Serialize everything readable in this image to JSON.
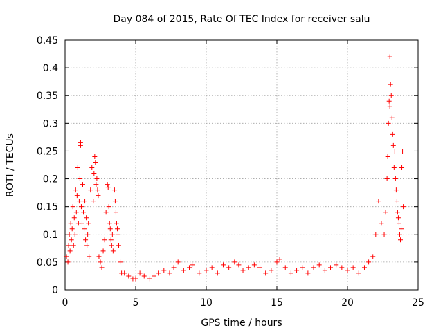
{
  "chart_data": {
    "type": "scatter",
    "title": "Day 084 of 2015, Rate Of TEC Index for receiver salu",
    "xlabel": "GPS time / hours",
    "ylabel": "ROTI / TECUs",
    "xlim": [
      0,
      25
    ],
    "ylim": [
      0,
      0.45
    ],
    "xticks": [
      0,
      5,
      10,
      15,
      20,
      25
    ],
    "xtick_labels": [
      "0",
      "5",
      "10",
      "15",
      "20",
      "25"
    ],
    "yticks": [
      0,
      0.05,
      0.1,
      0.15,
      0.2,
      0.25,
      0.3,
      0.35,
      0.4,
      0.45
    ],
    "ytick_labels": [
      "0",
      "0.05",
      "0.1",
      "0.15",
      "0.2",
      "0.25",
      "0.3",
      "0.35",
      "0.4",
      "0.45"
    ],
    "grid": true,
    "marker": "+",
    "color": "#ff0000",
    "series": [
      {
        "name": "ROTI",
        "x": [
          0.1,
          0.2,
          0.25,
          0.3,
          0.35,
          0.4,
          0.45,
          0.5,
          0.55,
          0.6,
          0.65,
          0.7,
          0.75,
          0.8,
          0.85,
          0.9,
          0.95,
          1.0,
          1.05,
          1.1,
          1.1,
          1.15,
          1.2,
          1.25,
          1.3,
          1.35,
          1.4,
          1.45,
          1.5,
          1.55,
          1.6,
          1.65,
          1.7,
          1.8,
          1.9,
          2.0,
          2.05,
          2.1,
          2.15,
          2.2,
          2.25,
          2.3,
          2.35,
          2.4,
          2.5,
          2.6,
          2.7,
          2.8,
          2.9,
          3.0,
          3.05,
          3.1,
          3.15,
          3.2,
          3.25,
          3.3,
          3.35,
          3.4,
          3.5,
          3.55,
          3.6,
          3.65,
          3.7,
          3.75,
          3.8,
          3.9,
          4.0,
          4.2,
          4.5,
          4.8,
          5.0,
          5.3,
          5.6,
          6.0,
          6.3,
          6.6,
          7.0,
          7.4,
          7.7,
          8.0,
          8.4,
          8.8,
          9.0,
          9.5,
          10.0,
          10.4,
          10.8,
          11.2,
          11.6,
          12.0,
          12.3,
          12.6,
          13.0,
          13.4,
          13.8,
          14.2,
          14.6,
          15.0,
          15.2,
          15.6,
          16.0,
          16.4,
          16.8,
          17.2,
          17.6,
          18.0,
          18.4,
          18.8,
          19.2,
          19.6,
          20.0,
          20.4,
          20.8,
          21.2,
          21.5,
          21.8,
          22.0,
          22.2,
          22.4,
          22.6,
          22.7,
          22.8,
          22.85,
          22.9,
          22.95,
          23.0,
          23.0,
          23.05,
          23.1,
          23.15,
          23.2,
          23.25,
          23.3,
          23.35,
          23.4,
          23.45,
          23.5,
          23.55,
          23.6,
          23.65,
          23.7,
          23.75,
          23.8,
          23.85,
          23.9,
          23.95
        ],
        "y": [
          0.06,
          0.05,
          0.08,
          0.1,
          0.07,
          0.12,
          0.09,
          0.11,
          0.15,
          0.08,
          0.13,
          0.1,
          0.18,
          0.14,
          0.17,
          0.22,
          0.12,
          0.16,
          0.2,
          0.265,
          0.26,
          0.15,
          0.12,
          0.19,
          0.14,
          0.11,
          0.16,
          0.09,
          0.13,
          0.08,
          0.1,
          0.12,
          0.06,
          0.18,
          0.22,
          0.16,
          0.21,
          0.24,
          0.23,
          0.19,
          0.2,
          0.18,
          0.17,
          0.06,
          0.05,
          0.04,
          0.07,
          0.09,
          0.14,
          0.19,
          0.185,
          0.15,
          0.12,
          0.11,
          0.09,
          0.08,
          0.1,
          0.07,
          0.18,
          0.16,
          0.14,
          0.12,
          0.11,
          0.1,
          0.08,
          0.05,
          0.03,
          0.03,
          0.025,
          0.02,
          0.02,
          0.03,
          0.025,
          0.02,
          0.025,
          0.03,
          0.035,
          0.03,
          0.04,
          0.05,
          0.035,
          0.04,
          0.045,
          0.03,
          0.035,
          0.04,
          0.03,
          0.045,
          0.04,
          0.05,
          0.045,
          0.035,
          0.04,
          0.045,
          0.04,
          0.03,
          0.035,
          0.05,
          0.055,
          0.04,
          0.03,
          0.035,
          0.04,
          0.03,
          0.04,
          0.045,
          0.035,
          0.04,
          0.045,
          0.04,
          0.035,
          0.04,
          0.03,
          0.04,
          0.05,
          0.06,
          0.1,
          0.16,
          0.12,
          0.1,
          0.14,
          0.2,
          0.24,
          0.3,
          0.34,
          0.33,
          0.42,
          0.37,
          0.35,
          0.31,
          0.28,
          0.26,
          0.22,
          0.25,
          0.2,
          0.18,
          0.16,
          0.14,
          0.13,
          0.12,
          0.1,
          0.09,
          0.11,
          0.22,
          0.25,
          0.15
        ]
      }
    ]
  }
}
